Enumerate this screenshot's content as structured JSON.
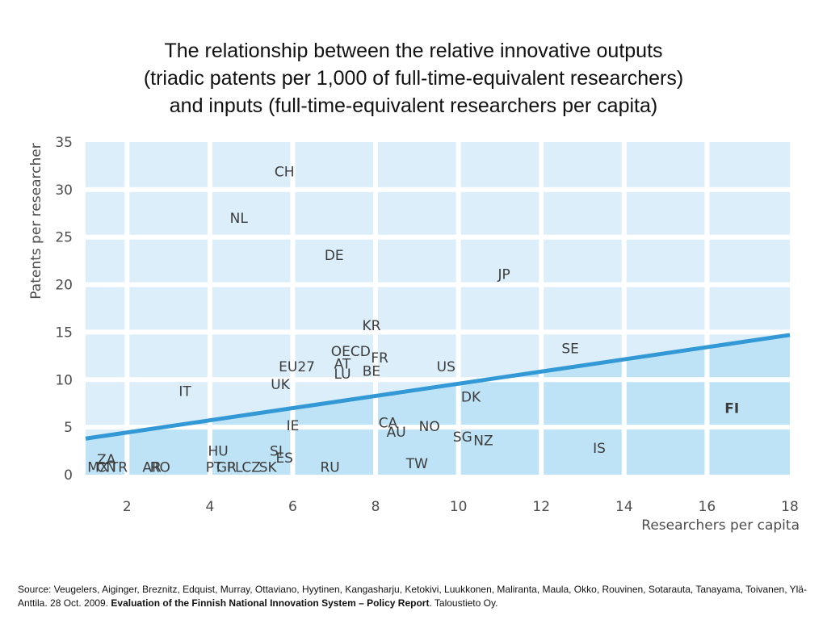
{
  "title": {
    "line1": "The relationship between the relative innovative outputs",
    "line2": "(triadic patents per 1,000 of full-time-equivalent researchers)",
    "line3": "and inputs (full-time-equivalent researchers per capita)"
  },
  "chart_data": {
    "type": "scatter",
    "title": "The relationship between the relative innovative outputs (triadic patents per 1,000 of full-time-equivalent researchers) and inputs (full-time-equivalent researchers per capita)",
    "xlabel": "Researchers per capita",
    "ylabel": "Patents per researcher",
    "xlim": [
      1,
      18
    ],
    "ylim": [
      0,
      35
    ],
    "x_ticks": [
      2,
      4,
      6,
      8,
      10,
      12,
      14,
      16,
      18
    ],
    "y_ticks": [
      0,
      5,
      10,
      15,
      20,
      25,
      30,
      35
    ],
    "grid": true,
    "colors": {
      "background_light": "#dbeefa",
      "background_dark": "#bfe3f6",
      "grid": "#ffffff",
      "trend": "#3399d6",
      "highlight": "#d6358e",
      "label": "#3c3c3c"
    },
    "trend_line": {
      "x": [
        1,
        18
      ],
      "y": [
        3.8,
        14.7
      ]
    },
    "points": [
      {
        "label": "CH",
        "x": 5.8,
        "y": 31.9
      },
      {
        "label": "NL",
        "x": 4.7,
        "y": 27.0
      },
      {
        "label": "DE",
        "x": 7.0,
        "y": 23.1
      },
      {
        "label": "JP",
        "x": 11.1,
        "y": 21.1
      },
      {
        "label": "KR",
        "x": 7.9,
        "y": 15.7
      },
      {
        "label": "SE",
        "x": 12.7,
        "y": 13.3
      },
      {
        "label": "OECD",
        "x": 7.4,
        "y": 13.0
      },
      {
        "label": "FR",
        "x": 8.1,
        "y": 12.3
      },
      {
        "label": "AT",
        "x": 7.2,
        "y": 11.7
      },
      {
        "label": "EU27",
        "x": 6.1,
        "y": 11.4
      },
      {
        "label": "US",
        "x": 9.7,
        "y": 11.4
      },
      {
        "label": "BE",
        "x": 7.9,
        "y": 10.9
      },
      {
        "label": "LU",
        "x": 7.2,
        "y": 10.6
      },
      {
        "label": "UK",
        "x": 5.7,
        "y": 9.5
      },
      {
        "label": "IT",
        "x": 3.4,
        "y": 8.8
      },
      {
        "label": "DK",
        "x": 10.3,
        "y": 8.2
      },
      {
        "label": "FI",
        "x": 16.6,
        "y": 7.0,
        "highlight": true
      },
      {
        "label": "IE",
        "x": 6.0,
        "y": 5.2
      },
      {
        "label": "CA",
        "x": 8.3,
        "y": 5.5
      },
      {
        "label": "NO",
        "x": 9.3,
        "y": 5.1
      },
      {
        "label": "AU",
        "x": 8.5,
        "y": 4.5
      },
      {
        "label": "SG",
        "x": 10.1,
        "y": 4.0
      },
      {
        "label": "NZ",
        "x": 10.6,
        "y": 3.6
      },
      {
        "label": "IS",
        "x": 13.4,
        "y": 2.8
      },
      {
        "label": "HU",
        "x": 4.2,
        "y": 2.5
      },
      {
        "label": "SI",
        "x": 5.6,
        "y": 2.5
      },
      {
        "label": "ES",
        "x": 5.8,
        "y": 1.8
      },
      {
        "label": "ZA",
        "x": 1.5,
        "y": 1.6
      },
      {
        "label": "MX",
        "x": 1.3,
        "y": 0.8
      },
      {
        "label": "CN",
        "x": 1.5,
        "y": 0.8
      },
      {
        "label": "TR",
        "x": 1.8,
        "y": 0.8
      },
      {
        "label": "AR",
        "x": 2.6,
        "y": 0.8
      },
      {
        "label": "RO",
        "x": 2.8,
        "y": 0.8
      },
      {
        "label": "PT",
        "x": 4.1,
        "y": 0.8
      },
      {
        "label": "GR",
        "x": 4.4,
        "y": 0.8
      },
      {
        "label": "PL",
        "x": 4.6,
        "y": 0.8
      },
      {
        "label": "CZ",
        "x": 5.0,
        "y": 0.8
      },
      {
        "label": "SK",
        "x": 5.4,
        "y": 0.8
      },
      {
        "label": "RU",
        "x": 6.9,
        "y": 0.8
      },
      {
        "label": "TW",
        "x": 9.0,
        "y": 1.2
      }
    ]
  },
  "source": {
    "prefix": "Source: Veugelers, Aiginger, Breznitz, Edquist, Murray, Ottaviano, Hyytinen, Kangasharju, Ketokivi, Luukkonen, Maliranta, Maula, Okko, Rouvinen, Sotarauta, Tanayama, Toivanen, Ylä-Anttila. 28 Oct. 2009. ",
    "title": "Evaluation of the Finnish National Innovation System – Policy Report",
    "suffix": ". Taloustieto Oy."
  }
}
